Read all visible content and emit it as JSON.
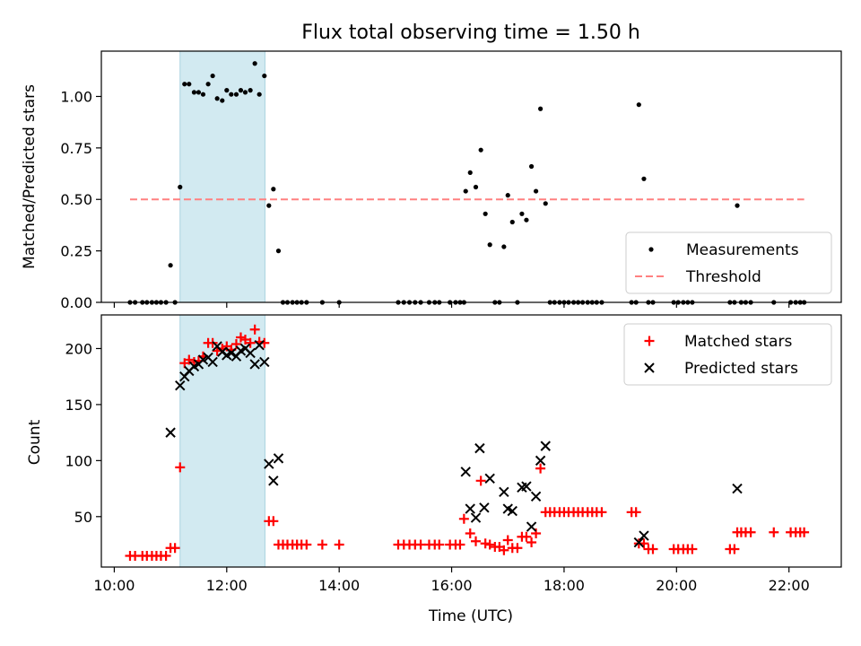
{
  "chart_data": [
    {
      "type": "scatter",
      "title": "Flux total observing time = 1.50 h",
      "xlabel": "",
      "ylabel": "Matched/Predicted stars",
      "xlim_hours": [
        9.77,
        22.93
      ],
      "ylim": [
        0,
        1.22
      ],
      "yticks": [
        0.0,
        0.25,
        0.5,
        0.75,
        1.0
      ],
      "ytick_labels": [
        "0.00",
        "0.25",
        "0.50",
        "0.75",
        "1.00"
      ],
      "shaded_span_hours": [
        11.17,
        12.68
      ],
      "shade_color": "#add8e6",
      "legend_placement": "lower-right",
      "series": [
        {
          "name": "Measurements",
          "marker": "dot",
          "color": "#000000",
          "points": [
            [
              10.28,
              0
            ],
            [
              10.37,
              0
            ],
            [
              10.5,
              0
            ],
            [
              10.58,
              0
            ],
            [
              10.67,
              0
            ],
            [
              10.75,
              0
            ],
            [
              10.83,
              0
            ],
            [
              10.92,
              0
            ],
            [
              11.0,
              0.18
            ],
            [
              11.08,
              0
            ],
            [
              11.17,
              0.56
            ],
            [
              11.25,
              1.06
            ],
            [
              11.33,
              1.06
            ],
            [
              11.42,
              1.02
            ],
            [
              11.5,
              1.02
            ],
            [
              11.58,
              1.01
            ],
            [
              11.67,
              1.06
            ],
            [
              11.75,
              1.1
            ],
            [
              11.83,
              0.99
            ],
            [
              11.92,
              0.98
            ],
            [
              12.0,
              1.03
            ],
            [
              12.08,
              1.01
            ],
            [
              12.17,
              1.01
            ],
            [
              12.25,
              1.03
            ],
            [
              12.33,
              1.02
            ],
            [
              12.42,
              1.03
            ],
            [
              12.5,
              1.16
            ],
            [
              12.58,
              1.01
            ],
            [
              12.67,
              1.1
            ],
            [
              12.75,
              0.47
            ],
            [
              12.83,
              0.55
            ],
            [
              12.92,
              0.25
            ],
            [
              13.0,
              0
            ],
            [
              13.08,
              0
            ],
            [
              13.17,
              0
            ],
            [
              13.25,
              0
            ],
            [
              13.33,
              0
            ],
            [
              13.42,
              0
            ],
            [
              13.7,
              0
            ],
            [
              14.0,
              0
            ],
            [
              15.05,
              0
            ],
            [
              15.15,
              0
            ],
            [
              15.25,
              0
            ],
            [
              15.35,
              0
            ],
            [
              15.45,
              0
            ],
            [
              15.6,
              0
            ],
            [
              15.7,
              0
            ],
            [
              15.78,
              0
            ],
            [
              15.97,
              0
            ],
            [
              16.07,
              0
            ],
            [
              16.15,
              0
            ],
            [
              16.22,
              0
            ],
            [
              16.25,
              0.54
            ],
            [
              16.33,
              0.63
            ],
            [
              16.43,
              0.56
            ],
            [
              16.52,
              0.74
            ],
            [
              16.6,
              0.43
            ],
            [
              16.68,
              0.28
            ],
            [
              16.77,
              0
            ],
            [
              16.85,
              0
            ],
            [
              16.93,
              0.27
            ],
            [
              17.0,
              0.52
            ],
            [
              17.08,
              0.39
            ],
            [
              17.17,
              0
            ],
            [
              17.25,
              0.43
            ],
            [
              17.33,
              0.4
            ],
            [
              17.42,
              0.66
            ],
            [
              17.5,
              0.54
            ],
            [
              17.58,
              0.94
            ],
            [
              17.67,
              0.48
            ],
            [
              17.75,
              0
            ],
            [
              17.83,
              0
            ],
            [
              17.92,
              0
            ],
            [
              18.0,
              0
            ],
            [
              18.08,
              0
            ],
            [
              18.17,
              0
            ],
            [
              18.25,
              0
            ],
            [
              18.33,
              0
            ],
            [
              18.42,
              0
            ],
            [
              18.5,
              0
            ],
            [
              18.58,
              0
            ],
            [
              18.67,
              0
            ],
            [
              19.2,
              0
            ],
            [
              19.28,
              0
            ],
            [
              19.33,
              0.96
            ],
            [
              19.42,
              0.6
            ],
            [
              19.5,
              0
            ],
            [
              19.58,
              0
            ],
            [
              19.95,
              0
            ],
            [
              20.03,
              0
            ],
            [
              20.12,
              0
            ],
            [
              20.2,
              0
            ],
            [
              20.28,
              0
            ],
            [
              20.95,
              0
            ],
            [
              21.03,
              0
            ],
            [
              21.08,
              0.47
            ],
            [
              21.15,
              0
            ],
            [
              21.23,
              0
            ],
            [
              21.32,
              0
            ],
            [
              21.73,
              0
            ],
            [
              22.03,
              0
            ],
            [
              22.12,
              0
            ],
            [
              22.2,
              0
            ],
            [
              22.27,
              0
            ]
          ]
        },
        {
          "name": "Threshold",
          "style": "dashed",
          "color": "#ff8080",
          "points": [
            [
              10.28,
              0.5
            ],
            [
              22.27,
              0.5
            ]
          ]
        }
      ]
    },
    {
      "type": "scatter",
      "title": "",
      "xlabel": "Time (UTC)",
      "ylabel": "Count",
      "xlim_hours": [
        9.77,
        22.93
      ],
      "ylim": [
        5,
        230
      ],
      "yticks": [
        50,
        100,
        150,
        200
      ],
      "ytick_labels": [
        "50",
        "100",
        "150",
        "200"
      ],
      "xticks_hours": [
        10,
        12,
        14,
        16,
        18,
        20,
        22
      ],
      "xtick_labels": [
        "10:00",
        "12:00",
        "14:00",
        "16:00",
        "18:00",
        "20:00",
        "22:00"
      ],
      "shaded_span_hours": [
        11.17,
        12.68
      ],
      "shade_color": "#add8e6",
      "legend_placement": "upper-right",
      "series": [
        {
          "name": "Matched stars",
          "marker": "plus",
          "color": "#ff0000",
          "points": [
            [
              10.28,
              15
            ],
            [
              10.37,
              15
            ],
            [
              10.5,
              15
            ],
            [
              10.58,
              15
            ],
            [
              10.67,
              15
            ],
            [
              10.75,
              15
            ],
            [
              10.83,
              15
            ],
            [
              10.92,
              15
            ],
            [
              11.0,
              22
            ],
            [
              11.08,
              22
            ],
            [
              11.17,
              94
            ],
            [
              11.25,
              187
            ],
            [
              11.33,
              190
            ],
            [
              11.42,
              188
            ],
            [
              11.5,
              189
            ],
            [
              11.58,
              193
            ],
            [
              11.67,
              205
            ],
            [
              11.75,
              205
            ],
            [
              11.83,
              198
            ],
            [
              11.92,
              200
            ],
            [
              12.0,
              202
            ],
            [
              12.08,
              199
            ],
            [
              12.17,
              204
            ],
            [
              12.25,
              210
            ],
            [
              12.33,
              208
            ],
            [
              12.42,
              205
            ],
            [
              12.5,
              217
            ],
            [
              12.58,
              206
            ],
            [
              12.67,
              205
            ],
            [
              12.75,
              46
            ],
            [
              12.83,
              46
            ],
            [
              12.92,
              25
            ],
            [
              13.0,
              25
            ],
            [
              13.08,
              25
            ],
            [
              13.17,
              25
            ],
            [
              13.25,
              25
            ],
            [
              13.33,
              25
            ],
            [
              13.42,
              25
            ],
            [
              13.7,
              25
            ],
            [
              14.0,
              25
            ],
            [
              15.05,
              25
            ],
            [
              15.15,
              25
            ],
            [
              15.25,
              25
            ],
            [
              15.35,
              25
            ],
            [
              15.45,
              25
            ],
            [
              15.6,
              25
            ],
            [
              15.7,
              25
            ],
            [
              15.78,
              25
            ],
            [
              15.97,
              25
            ],
            [
              16.07,
              25
            ],
            [
              16.15,
              25
            ],
            [
              16.22,
              48
            ],
            [
              16.33,
              35
            ],
            [
              16.43,
              28
            ],
            [
              16.52,
              82
            ],
            [
              16.6,
              26
            ],
            [
              16.68,
              25
            ],
            [
              16.77,
              23
            ],
            [
              16.85,
              23
            ],
            [
              16.93,
              20
            ],
            [
              17.0,
              29
            ],
            [
              17.08,
              22
            ],
            [
              17.17,
              22
            ],
            [
              17.25,
              32
            ],
            [
              17.33,
              32
            ],
            [
              17.42,
              27
            ],
            [
              17.5,
              35
            ],
            [
              17.58,
              93
            ],
            [
              17.67,
              54
            ],
            [
              17.75,
              54
            ],
            [
              17.83,
              54
            ],
            [
              17.92,
              54
            ],
            [
              18.0,
              54
            ],
            [
              18.08,
              54
            ],
            [
              18.17,
              54
            ],
            [
              18.25,
              54
            ],
            [
              18.33,
              54
            ],
            [
              18.42,
              54
            ],
            [
              18.5,
              54
            ],
            [
              18.58,
              54
            ],
            [
              18.67,
              54
            ],
            [
              19.2,
              54
            ],
            [
              19.28,
              54
            ],
            [
              19.33,
              26
            ],
            [
              19.42,
              26
            ],
            [
              19.5,
              21
            ],
            [
              19.58,
              21
            ],
            [
              19.95,
              21
            ],
            [
              20.03,
              21
            ],
            [
              20.12,
              21
            ],
            [
              20.2,
              21
            ],
            [
              20.28,
              21
            ],
            [
              20.95,
              21
            ],
            [
              21.03,
              21
            ],
            [
              21.08,
              36
            ],
            [
              21.15,
              36
            ],
            [
              21.23,
              36
            ],
            [
              21.32,
              36
            ],
            [
              21.73,
              36
            ],
            [
              22.03,
              36
            ],
            [
              22.12,
              36
            ],
            [
              22.2,
              36
            ],
            [
              22.27,
              36
            ]
          ]
        },
        {
          "name": "Predicted stars",
          "marker": "x",
          "color": "#000000",
          "points": [
            [
              11.0,
              125
            ],
            [
              11.17,
              167
            ],
            [
              11.25,
              175
            ],
            [
              11.33,
              180
            ],
            [
              11.42,
              184
            ],
            [
              11.5,
              186
            ],
            [
              11.58,
              190
            ],
            [
              11.67,
              192
            ],
            [
              11.75,
              188
            ],
            [
              11.83,
              202
            ],
            [
              11.92,
              197
            ],
            [
              12.0,
              194
            ],
            [
              12.08,
              196
            ],
            [
              12.17,
              193
            ],
            [
              12.25,
              198
            ],
            [
              12.33,
              200
            ],
            [
              12.42,
              196
            ],
            [
              12.5,
              186
            ],
            [
              12.58,
              203
            ],
            [
              12.67,
              188
            ],
            [
              12.75,
              97
            ],
            [
              12.83,
              82
            ],
            [
              12.92,
              102
            ],
            [
              16.25,
              90
            ],
            [
              16.33,
              57
            ],
            [
              16.43,
              49
            ],
            [
              16.5,
              111
            ],
            [
              16.58,
              58
            ],
            [
              16.68,
              84
            ],
            [
              16.93,
              72
            ],
            [
              17.0,
              57
            ],
            [
              17.08,
              55
            ],
            [
              17.25,
              76
            ],
            [
              17.33,
              77
            ],
            [
              17.42,
              41
            ],
            [
              17.5,
              68
            ],
            [
              17.58,
              100
            ],
            [
              17.67,
              113
            ],
            [
              19.33,
              27
            ],
            [
              19.42,
              33
            ],
            [
              21.08,
              75
            ]
          ]
        }
      ]
    }
  ]
}
